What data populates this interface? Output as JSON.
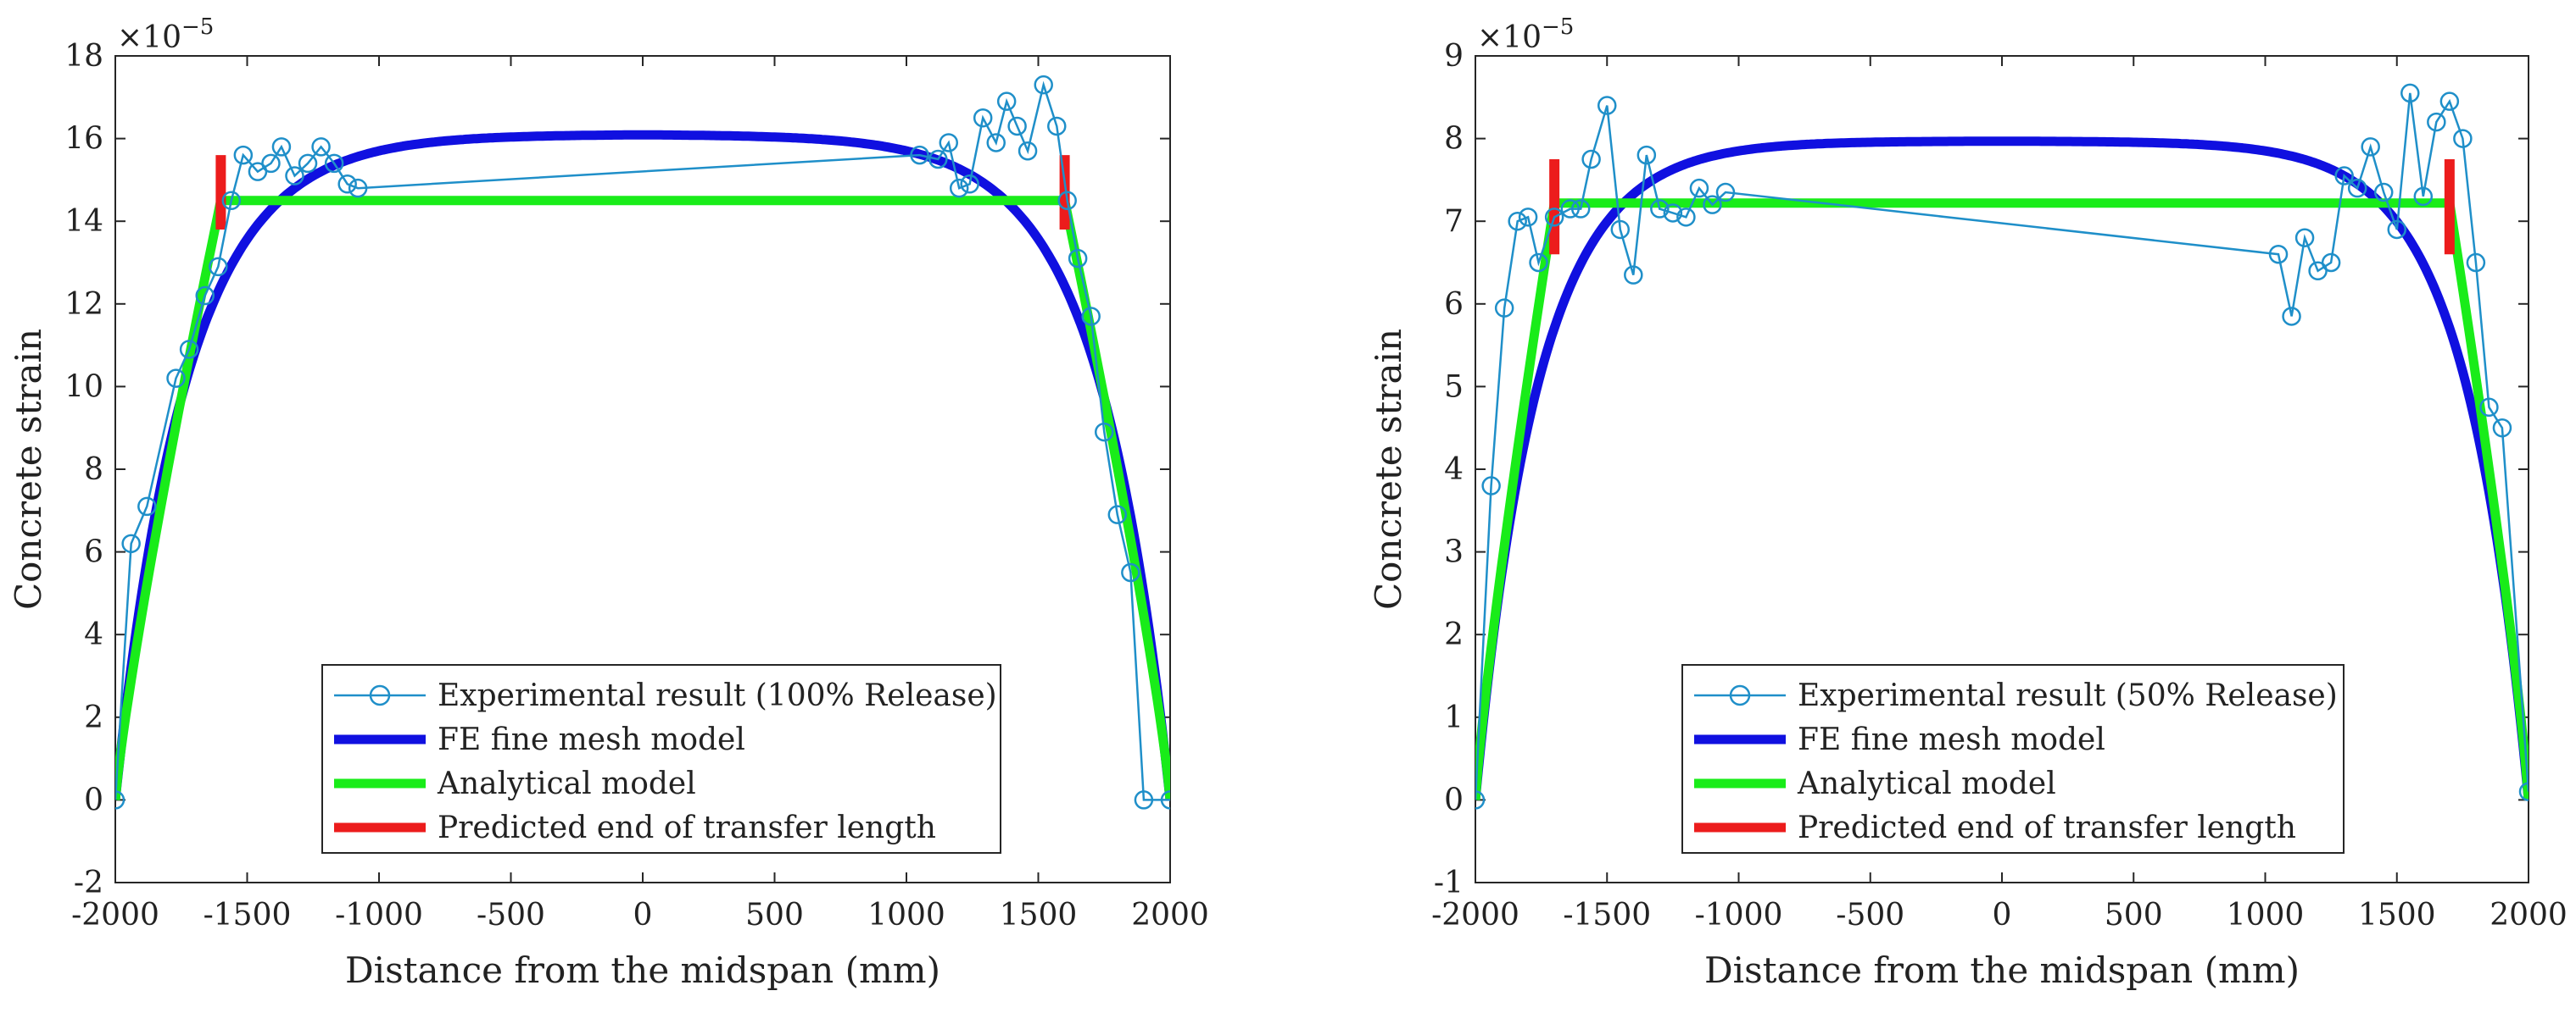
{
  "chart_data": [
    {
      "type": "line",
      "xlabel": "Distance from the midspan (mm)",
      "ylabel": "Concrete strain",
      "exponent": {
        "base": "×10",
        "power": "−5"
      },
      "xlim": [
        -2000,
        2000
      ],
      "ylim": [
        -2,
        18
      ],
      "xticks": [
        -2000,
        -1500,
        -1000,
        -500,
        0,
        500,
        1000,
        1500,
        2000
      ],
      "yticks": [
        -2,
        0,
        2,
        4,
        6,
        8,
        10,
        12,
        14,
        16,
        18
      ],
      "xtick_labels": [
        "-2000",
        "-1500",
        "-1000",
        "-500",
        "0",
        "500",
        "1000",
        "1500",
        "2000"
      ],
      "ytick_labels": [
        "-2",
        "0",
        "2",
        "4",
        "6",
        "8",
        "10",
        "12",
        "14",
        "16",
        "18"
      ],
      "legend_location": "bottom-center",
      "grid": false,
      "series": [
        {
          "name": "Experimental result (100% Release)",
          "style": "marker-line",
          "color": "#1f8fc9",
          "x": [
            -2000,
            -1940,
            -1880,
            -1770,
            -1720,
            -1660,
            -1610,
            -1560,
            -1515,
            -1460,
            -1410,
            -1370,
            -1320,
            -1270,
            -1220,
            -1170,
            -1120,
            -1080,
            1050,
            1120,
            1160,
            1200,
            1240,
            1290,
            1340,
            1380,
            1420,
            1460,
            1520,
            1570,
            1610,
            1650,
            1700,
            1750,
            1800,
            1850,
            1900,
            2000
          ],
          "y": [
            0.0,
            6.2,
            7.1,
            10.2,
            10.9,
            12.2,
            12.9,
            14.5,
            15.6,
            15.2,
            15.4,
            15.8,
            15.1,
            15.4,
            15.8,
            15.4,
            14.9,
            14.8,
            15.6,
            15.5,
            15.9,
            14.8,
            14.9,
            16.5,
            15.9,
            16.9,
            16.3,
            15.7,
            17.3,
            16.3,
            14.5,
            13.1,
            11.7,
            8.9,
            6.9,
            5.5,
            0.0,
            0.0
          ]
        },
        {
          "name": "FE fine mesh model",
          "style": "line",
          "color": "#1010e0",
          "peak": 16.1,
          "edge_x": 2000,
          "decay": 0.0037
        },
        {
          "name": "Analytical model",
          "style": "line",
          "color": "#19ec19",
          "plateau": 14.5,
          "transfer_start": 1600,
          "transfer_power": 0.85
        },
        {
          "name": "Predicted end of transfer length",
          "style": "vertical-bar",
          "color": "#ec1c1c",
          "x": [
            -1600,
            1600
          ],
          "y_range": [
            13.8,
            15.6
          ]
        }
      ]
    },
    {
      "type": "line",
      "xlabel": "Distance from the midspan (mm)",
      "ylabel": "Concrete strain",
      "exponent": {
        "base": "×10",
        "power": "−5"
      },
      "xlim": [
        -2000,
        2000
      ],
      "ylim": [
        -1,
        9
      ],
      "xticks": [
        -2000,
        -1500,
        -1000,
        -500,
        0,
        500,
        1000,
        1500,
        2000
      ],
      "yticks": [
        -1,
        0,
        1,
        2,
        3,
        4,
        5,
        6,
        7,
        8,
        9
      ],
      "xtick_labels": [
        "-2000",
        "-1500",
        "-1000",
        "-500",
        "0",
        "500",
        "1000",
        "1500",
        "2000"
      ],
      "ytick_labels": [
        "-1",
        "0",
        "1",
        "2",
        "3",
        "4",
        "5",
        "6",
        "7",
        "8",
        "9"
      ],
      "legend_location": "bottom-center",
      "grid": false,
      "series": [
        {
          "name": "Experimental result (50% Release)",
          "style": "marker-line",
          "color": "#1f8fc9",
          "x": [
            -2000,
            -1940,
            -1890,
            -1840,
            -1800,
            -1760,
            -1700,
            -1640,
            -1600,
            -1560,
            -1500,
            -1450,
            -1400,
            -1350,
            -1300,
            -1250,
            -1200,
            -1150,
            -1100,
            -1050,
            1050,
            1100,
            1150,
            1200,
            1250,
            1300,
            1350,
            1400,
            1450,
            1500,
            1550,
            1600,
            1650,
            1700,
            1750,
            1800,
            1850,
            1900,
            2000
          ],
          "y": [
            0.0,
            3.8,
            5.95,
            7.0,
            7.05,
            6.5,
            7.05,
            7.15,
            7.15,
            7.75,
            8.4,
            6.9,
            6.35,
            7.8,
            7.15,
            7.1,
            7.05,
            7.4,
            7.2,
            7.35,
            6.6,
            5.85,
            6.8,
            6.4,
            6.5,
            7.55,
            7.4,
            7.9,
            7.35,
            6.9,
            8.55,
            7.3,
            8.2,
            8.45,
            8.0,
            6.5,
            4.75,
            4.5,
            0.1
          ]
        },
        {
          "name": "FE fine mesh model",
          "style": "line",
          "color": "#1010e0",
          "peak": 7.97,
          "edge_x": 2000,
          "decay": 0.0042
        },
        {
          "name": "Analytical model",
          "style": "line",
          "color": "#19ec19",
          "plateau": 7.22,
          "transfer_start": 1700,
          "transfer_power": 0.85
        },
        {
          "name": "Predicted end of transfer length",
          "style": "vertical-bar",
          "color": "#ec1c1c",
          "x": [
            -1700,
            1700
          ],
          "y_range": [
            6.6,
            7.75
          ]
        }
      ]
    }
  ]
}
